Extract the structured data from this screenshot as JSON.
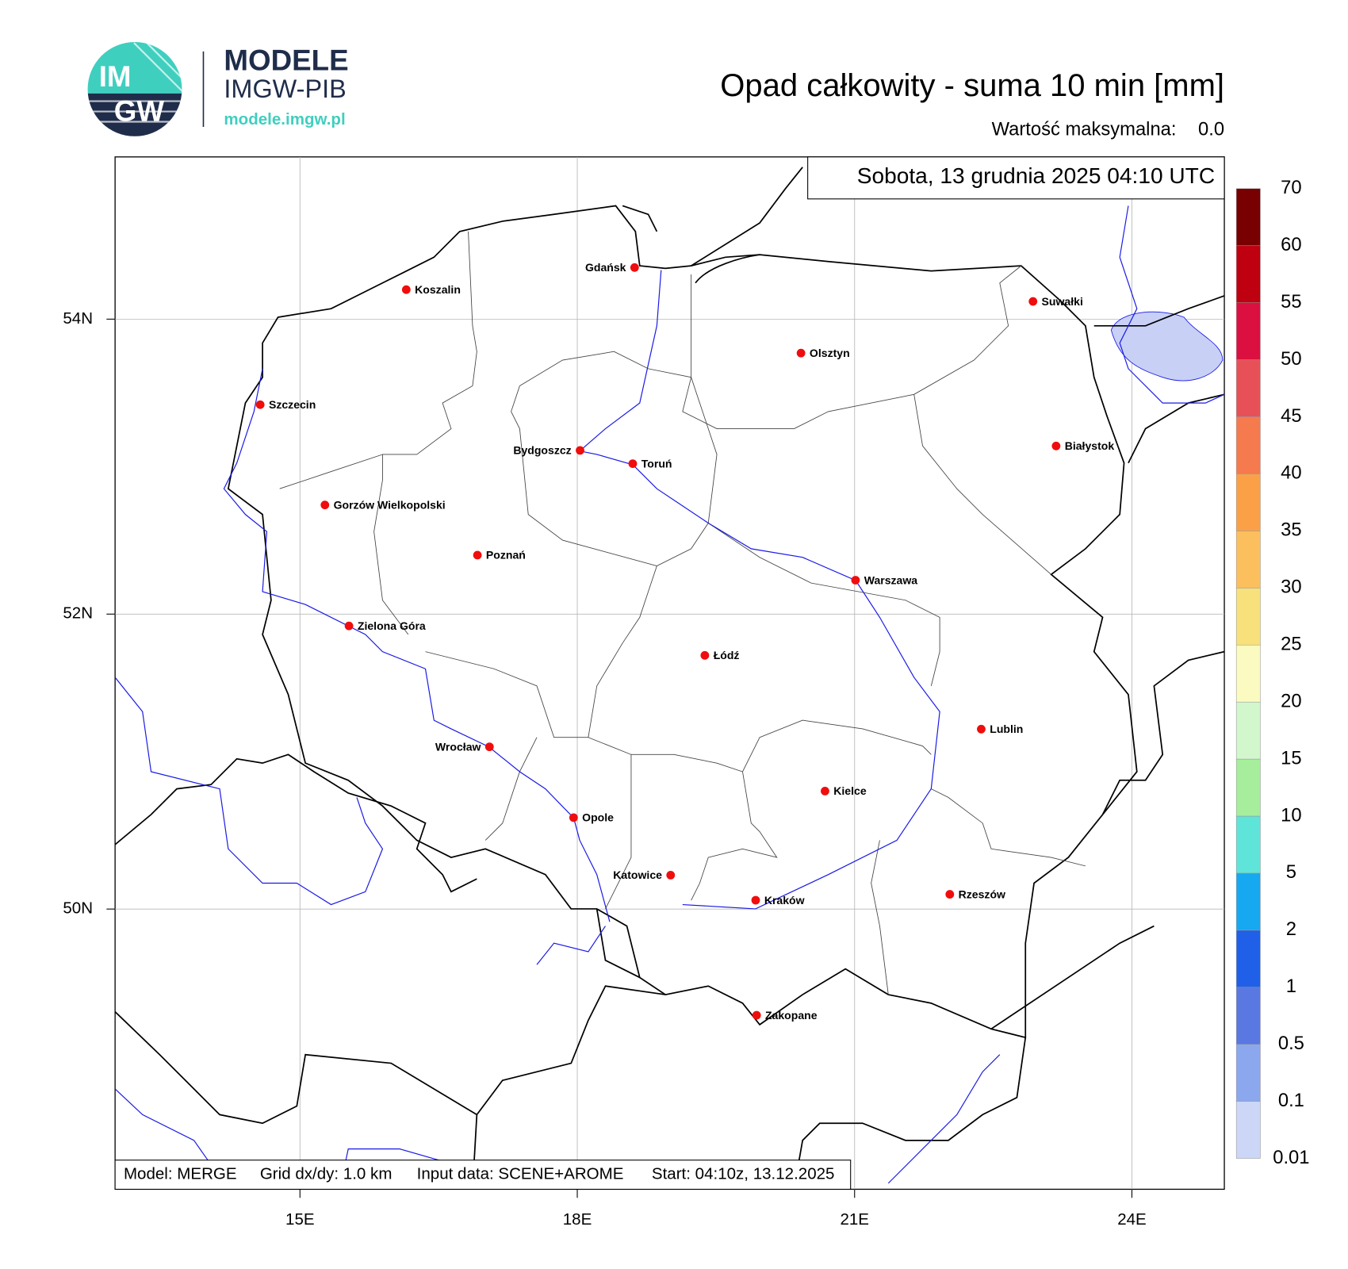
{
  "header": {
    "logo_text": [
      "IM",
      "GW"
    ],
    "brand": "MODELE",
    "brand_sub": "IMGW-PIB",
    "url": "modele.imgw.pl",
    "title": "Opad całkowity - suma 10 min [mm]",
    "max_label": "Wartość maksymalna:",
    "max_value": "0.0"
  },
  "map": {
    "timestamp": "Sobota, 13 grudnia 2025 04:10 UTC",
    "lon_range": [
      13,
      25
    ],
    "lat_range": [
      48.1,
      55.1
    ],
    "lon_ticks": [
      {
        "value": 15,
        "label": "15E"
      },
      {
        "value": 18,
        "label": "18E"
      },
      {
        "value": 21,
        "label": "21E"
      },
      {
        "value": 24,
        "label": "24E"
      }
    ],
    "lat_ticks": [
      {
        "value": 50,
        "label": "50N"
      },
      {
        "value": 52,
        "label": "52N"
      },
      {
        "value": 54,
        "label": "54N"
      }
    ],
    "cities": [
      {
        "name": "Gdańsk",
        "lon": 18.62,
        "lat": 54.35
      },
      {
        "name": "Koszalin",
        "lon": 16.15,
        "lat": 54.2
      },
      {
        "name": "Suwałki",
        "lon": 22.93,
        "lat": 54.12
      },
      {
        "name": "Olsztyn",
        "lon": 20.42,
        "lat": 53.77
      },
      {
        "name": "Szczecin",
        "lon": 14.57,
        "lat": 53.42
      },
      {
        "name": "Białystok",
        "lon": 23.18,
        "lat": 53.14
      },
      {
        "name": "Bydgoszcz",
        "lon": 18.03,
        "lat": 53.11
      },
      {
        "name": "Toruń",
        "lon": 18.6,
        "lat": 53.02
      },
      {
        "name": "Gorzów Wielkopolski",
        "lon": 15.27,
        "lat": 52.74
      },
      {
        "name": "Poznań",
        "lon": 16.92,
        "lat": 52.4
      },
      {
        "name": "Warszawa",
        "lon": 21.01,
        "lat": 52.23
      },
      {
        "name": "Zielona Góra",
        "lon": 15.53,
        "lat": 51.92
      },
      {
        "name": "Łódź",
        "lon": 19.38,
        "lat": 51.72
      },
      {
        "name": "Lublin",
        "lon": 22.37,
        "lat": 51.22
      },
      {
        "name": "Wrocław",
        "lon": 17.05,
        "lat": 51.1
      },
      {
        "name": "Kielce",
        "lon": 20.68,
        "lat": 50.8
      },
      {
        "name": "Opole",
        "lon": 17.96,
        "lat": 50.62
      },
      {
        "name": "Katowice",
        "lon": 19.01,
        "lat": 50.23
      },
      {
        "name": "Rzeszów",
        "lon": 22.03,
        "lat": 50.1
      },
      {
        "name": "Kraków",
        "lon": 19.93,
        "lat": 50.06
      },
      {
        "name": "Zakopane",
        "lon": 19.94,
        "lat": 49.28
      }
    ],
    "footer": [
      "Model: MERGE",
      "Grid dx/dy: 1.0 km",
      "Input data: SCENE+AROME",
      "Start: 04:10z, 13.12.2025"
    ]
  },
  "colorbar": {
    "levels": [
      0.01,
      0.1,
      0.5,
      1,
      2,
      5,
      10,
      15,
      20,
      25,
      30,
      35,
      40,
      45,
      50,
      55,
      60,
      70
    ],
    "colors": [
      "#ccd6f6",
      "#8ba8ee",
      "#5a78e2",
      "#2060e8",
      "#16a8f0",
      "#5ee4d8",
      "#a6ee9c",
      "#d2f7cc",
      "#fbfac0",
      "#f8e07a",
      "#fbbf5e",
      "#fba046",
      "#f57a4e",
      "#e85058",
      "#dc1040",
      "#be0010",
      "#780000"
    ]
  }
}
